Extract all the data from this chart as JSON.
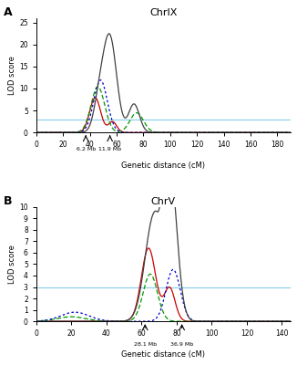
{
  "panel_A": {
    "title": "ChrIX",
    "label": "A",
    "xlim": [
      0,
      190
    ],
    "ylim": [
      0,
      26
    ],
    "yticks": [
      0,
      5,
      10,
      15,
      20,
      25
    ],
    "xticks": [
      0,
      20,
      40,
      60,
      80,
      100,
      120,
      140,
      160,
      180
    ],
    "xlabel": "Genetic distance (cM)",
    "ylabel": "LOD score",
    "threshold": 3.0,
    "threshold_color": "#87CEEB",
    "markers": [
      {
        "x": 37,
        "label": "6.2 Mb"
      },
      {
        "x": 55,
        "label": "11.9 Mb"
      }
    ]
  },
  "panel_B": {
    "title": "ChrV",
    "label": "B",
    "xlim": [
      0,
      145
    ],
    "ylim": [
      0,
      10
    ],
    "yticks": [
      0,
      1,
      2,
      3,
      4,
      5,
      6,
      7,
      8,
      9,
      10
    ],
    "xticks": [
      0,
      20,
      40,
      60,
      80,
      100,
      120,
      140
    ],
    "xlabel": "Genetic distance (cM)",
    "ylabel": "LOD score",
    "threshold": 3.0,
    "threshold_color": "#87CEEB",
    "markers": [
      {
        "x": 62,
        "label": "28.1 Mb"
      },
      {
        "x": 83,
        "label": "36.9 Mb"
      }
    ]
  },
  "colors": {
    "black": "#404040",
    "red": "#CC0000",
    "green": "#009900",
    "blue": "#0000CC"
  }
}
